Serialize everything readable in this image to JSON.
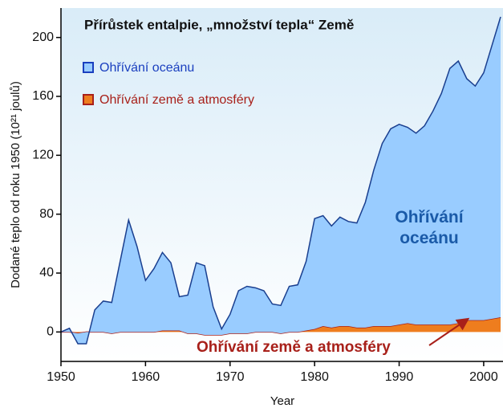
{
  "chart_data": {
    "type": "stacked_area",
    "title": "Přírůstek entalpie, „množství tepla“ Země",
    "x_label": "Year",
    "y_label": "Dodané teplo od roku 1950 (10²¹ joulů)",
    "x": [
      1950,
      1951,
      1952,
      1953,
      1954,
      1955,
      1956,
      1957,
      1958,
      1959,
      1960,
      1961,
      1962,
      1963,
      1964,
      1965,
      1966,
      1967,
      1968,
      1969,
      1970,
      1971,
      1972,
      1973,
      1974,
      1975,
      1976,
      1977,
      1978,
      1979,
      1980,
      1981,
      1982,
      1983,
      1984,
      1985,
      1986,
      1987,
      1988,
      1989,
      1990,
      1991,
      1992,
      1993,
      1994,
      1995,
      1996,
      1997,
      1998,
      1999,
      2000,
      2001,
      2002
    ],
    "series": [
      {
        "name": "Ohřívání země a atmosféry",
        "color": "#ee7d1e",
        "line_color": "#a8201a",
        "values": [
          0,
          0,
          -1,
          0,
          0,
          0,
          -1,
          0,
          0,
          0,
          0,
          0,
          1,
          1,
          1,
          -1,
          -1,
          -2,
          -2,
          -2,
          -1,
          -1,
          -1,
          0,
          0,
          0,
          -1,
          0,
          0,
          1,
          2,
          4,
          3,
          4,
          4,
          3,
          3,
          4,
          4,
          4,
          5,
          6,
          5,
          5,
          5,
          5,
          5,
          6,
          8,
          8,
          8,
          9,
          10
        ]
      },
      {
        "name": "Ohřívání oceánu",
        "color": "#99ccff",
        "line_color": "#1a3f8f",
        "values": [
          0,
          2.5,
          -7,
          -8,
          15,
          21,
          21,
          48,
          76,
          58,
          35,
          43,
          53,
          46,
          23,
          26,
          48,
          47,
          19,
          4,
          13,
          29,
          32,
          30,
          28,
          19,
          19,
          31,
          32,
          47,
          75,
          75,
          69,
          74,
          71,
          71,
          85,
          106,
          124,
          134,
          136,
          133,
          130,
          135,
          145,
          157,
          174,
          178,
          164,
          159,
          168,
          186,
          204
        ]
      }
    ],
    "annotations": [
      "Ohřívání oceánu",
      "Ohřívání země a atmosféry"
    ],
    "xlim": [
      1950,
      2002
    ],
    "xticks": [
      1950,
      1960,
      1970,
      1980,
      1990,
      2000
    ],
    "ylim": [
      -20,
      220
    ],
    "yticks": [
      0,
      40,
      80,
      120,
      160,
      200
    ]
  }
}
